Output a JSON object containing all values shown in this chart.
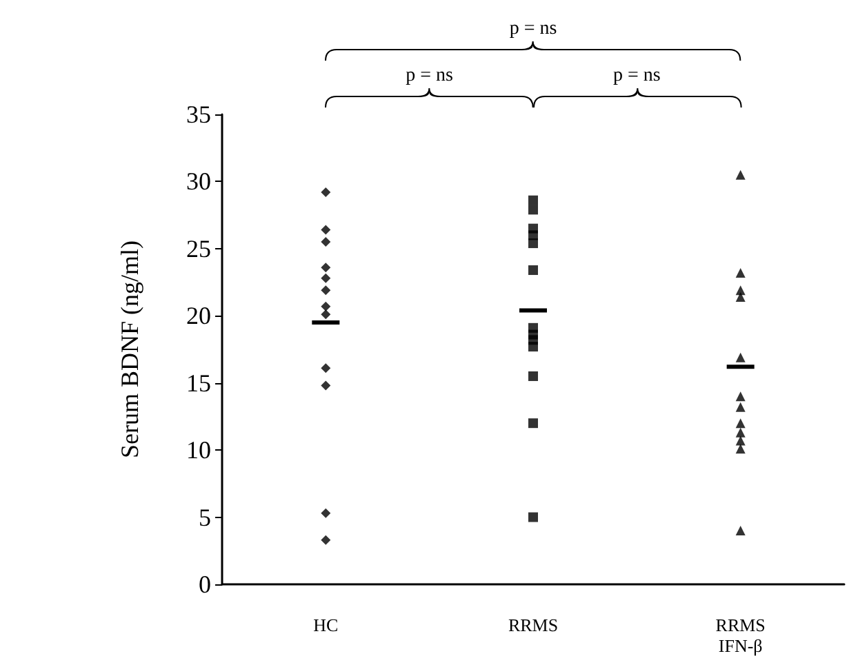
{
  "chart_data": {
    "type": "scatter",
    "ylabel": "Serum BDNF (ng/ml)",
    "categories": [
      "HC",
      "RRMS",
      "RRMS\nIFN-β"
    ],
    "ylim": [
      0,
      35
    ],
    "yticks": [
      0,
      5,
      10,
      15,
      20,
      25,
      30,
      35
    ],
    "grid": false,
    "annotations": [
      "p = ns",
      "p = ns",
      "p = ns"
    ],
    "series": [
      {
        "color": "#000000",
        "marker": "diamond",
        "x": [
          "HC",
          "HC",
          "HC",
          "HC",
          "HC",
          "HC",
          "HC",
          "HC",
          "HC",
          "HC",
          "HC",
          "HC"
        ],
        "values": [
          29.2,
          26.4,
          25.5,
          23.6,
          22.8,
          21.9,
          20.7,
          20.1,
          16.1,
          14.8,
          5.3,
          3.3
        ]
      },
      {
        "color": "#000000",
        "marker": "square",
        "x": [
          "RRMS",
          "RRMS",
          "RRMS",
          "RRMS",
          "RRMS",
          "RRMS",
          "RRMS",
          "RRMS",
          "RRMS",
          "RRMS",
          "RRMS",
          "RRMS",
          "RRMS"
        ],
        "values": [
          28.6,
          27.9,
          26.5,
          26.0,
          25.4,
          23.4,
          19.1,
          18.6,
          18.2,
          17.7,
          15.5,
          12.0,
          5.0
        ]
      },
      {
        "color": "#000000",
        "marker": "triangle",
        "x": [
          "RRMS\nIFN-β",
          "RRMS\nIFN-β",
          "RRMS\nIFN-β",
          "RRMS\nIFN-β",
          "RRMS\nIFN-β",
          "RRMS\nIFN-β",
          "RRMS\nIFN-β",
          "RRMS\nIFN-β",
          "RRMS\nIFN-β",
          "RRMS\nIFN-β",
          "RRMS\nIFN-β",
          "RRMS\nIFN-β"
        ],
        "values": [
          30.5,
          23.2,
          21.9,
          21.4,
          16.9,
          14.0,
          13.2,
          12.0,
          11.3,
          10.7,
          10.1,
          4.0
        ]
      },
      {
        "type": "box",
        "color": "#000000",
        "boxes": [
          {
            "low": 19.5,
            "q1": 19.5,
            "median": 19.5,
            "q3": 19.5,
            "high": 19.5
          },
          {
            "low": 20.4,
            "q1": 20.4,
            "median": 20.4,
            "q3": 20.4,
            "high": 20.4
          },
          {
            "low": 16.2,
            "q1": 16.2,
            "median": 16.2,
            "q3": 16.2,
            "high": 16.2
          }
        ]
      }
    ]
  }
}
